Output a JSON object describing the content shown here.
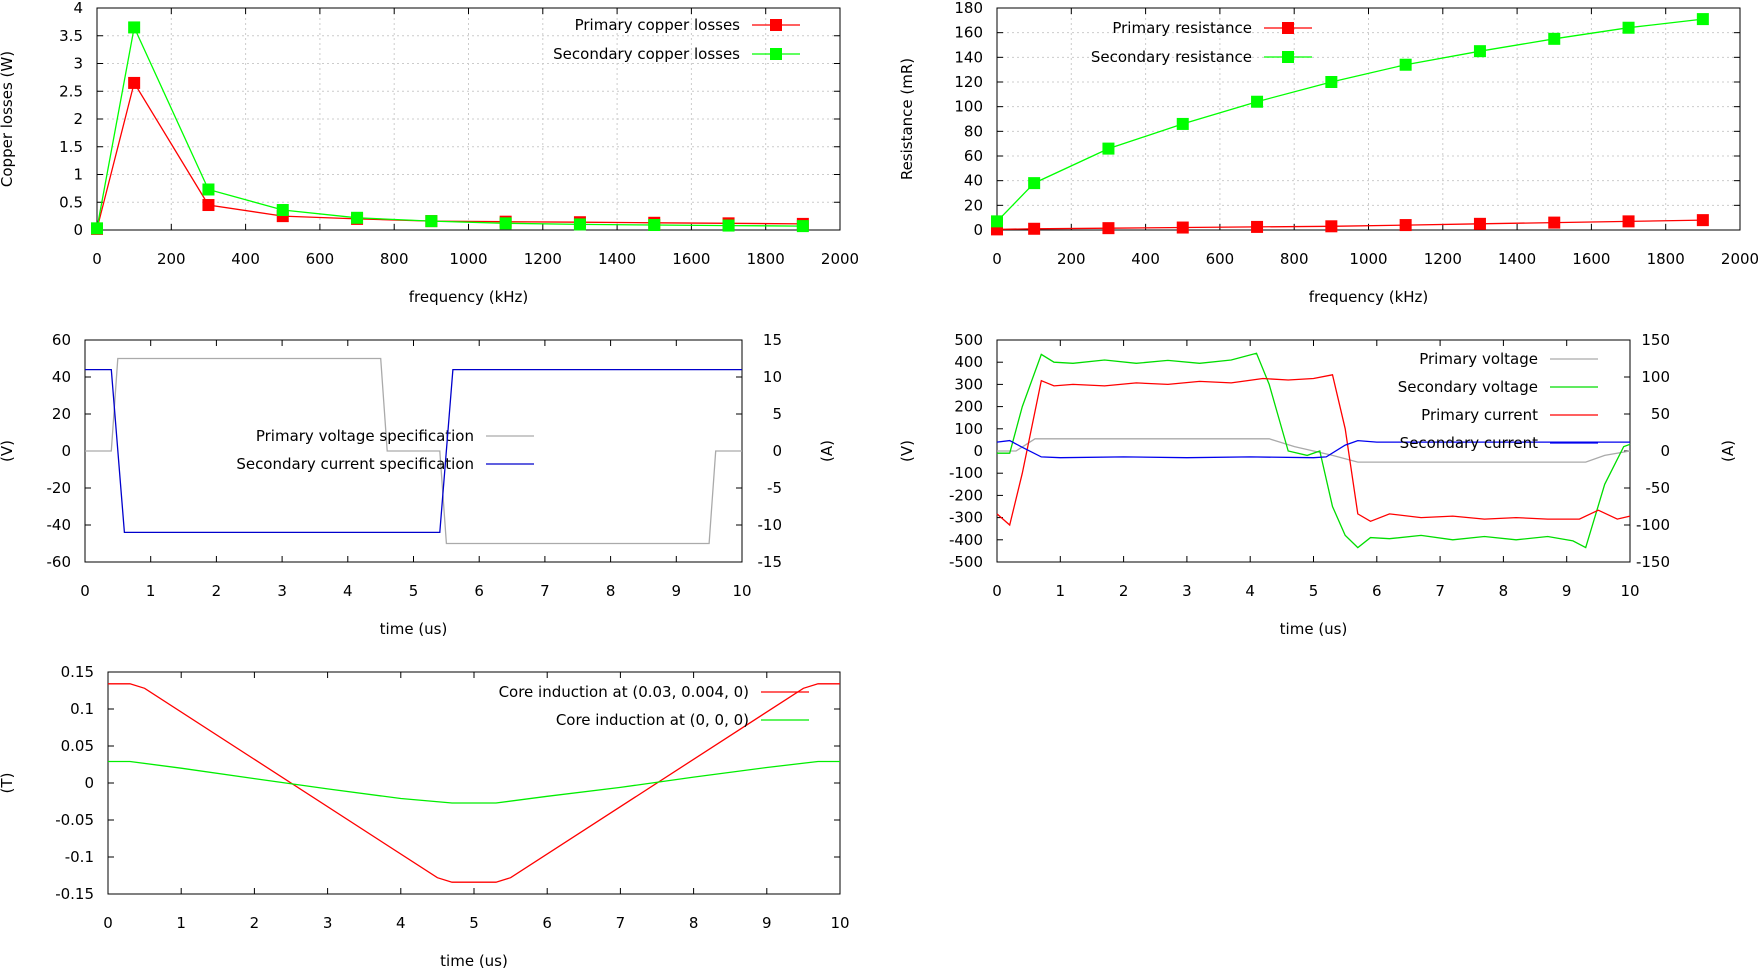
{
  "chart_data": [
    {
      "type": "line",
      "xlabel": "frequency (kHz)",
      "ylabel": "Copper losses (W)",
      "xlim": [
        0,
        2000
      ],
      "ylim": [
        0,
        4
      ],
      "xticks": [
        "0",
        "200",
        "400",
        "600",
        "800",
        "1000",
        "1200",
        "1400",
        "1600",
        "1800",
        "2000"
      ],
      "yticks": [
        "0",
        "0.5",
        "1",
        "1.5",
        "2",
        "2.5",
        "3",
        "3.5",
        "4"
      ],
      "grid": true,
      "legend": "top-right",
      "x": [
        0,
        100,
        300,
        500,
        700,
        900,
        1100,
        1300,
        1500,
        1700,
        1900
      ],
      "series": [
        {
          "name": "Primary copper losses",
          "color": "#ff0000",
          "marker": "square",
          "values": [
            0.02,
            2.65,
            0.45,
            0.25,
            0.2,
            0.16,
            0.15,
            0.14,
            0.13,
            0.12,
            0.11
          ]
        },
        {
          "name": "Secondary copper losses",
          "color": "#00ff00",
          "marker": "square",
          "values": [
            0.03,
            3.65,
            0.73,
            0.36,
            0.22,
            0.16,
            0.12,
            0.1,
            0.09,
            0.08,
            0.07
          ]
        }
      ]
    },
    {
      "type": "line",
      "xlabel": "frequency (kHz)",
      "ylabel": "Resistance (mR)",
      "xlim": [
        0,
        2000
      ],
      "ylim": [
        0,
        180
      ],
      "xticks": [
        "0",
        "200",
        "400",
        "600",
        "800",
        "1000",
        "1200",
        "1400",
        "1600",
        "1800",
        "2000"
      ],
      "yticks": [
        "0",
        "20",
        "40",
        "60",
        "80",
        "100",
        "120",
        "140",
        "160",
        "180"
      ],
      "grid": true,
      "legend": "top-left",
      "x": [
        0,
        100,
        300,
        500,
        700,
        900,
        1100,
        1300,
        1500,
        1700,
        1900
      ],
      "series": [
        {
          "name": "Primary resistance",
          "color": "#ff0000",
          "marker": "square",
          "values": [
            0.5,
            1.0,
            1.5,
            2.0,
            2.5,
            3.0,
            4.0,
            5.0,
            6.0,
            7.0,
            8.0
          ]
        },
        {
          "name": "Secondary resistance",
          "color": "#00ff00",
          "marker": "square",
          "values": [
            7,
            38,
            66,
            86,
            104,
            120,
            134,
            145,
            155,
            164,
            171
          ]
        }
      ]
    },
    {
      "type": "line",
      "xlabel": "time (us)",
      "ylabel": "(V)",
      "y2label": "(A)",
      "xlim": [
        0,
        10
      ],
      "ylim": [
        -60,
        60
      ],
      "y2lim": [
        -15,
        15
      ],
      "xticks": [
        "0",
        "1",
        "2",
        "3",
        "4",
        "5",
        "6",
        "7",
        "8",
        "9",
        "10"
      ],
      "yticks": [
        "-60",
        "-40",
        "-20",
        "0",
        "20",
        "40",
        "60"
      ],
      "y2ticks": [
        "-15",
        "-10",
        "-5",
        "0",
        "5",
        "10",
        "15"
      ],
      "grid": false,
      "legend": "center",
      "series": [
        {
          "name": "Primary voltage specification",
          "color": "#aaaaaa",
          "axis": "y1",
          "x": [
            0,
            0.4,
            0.5,
            4.5,
            4.6,
            5.4,
            5.5,
            9.5,
            9.6,
            10
          ],
          "values": [
            0,
            0,
            50,
            50,
            0,
            0,
            -50,
            -50,
            0,
            0
          ]
        },
        {
          "name": "Secondary current specification",
          "color": "#0000cc",
          "axis": "y2",
          "x": [
            0,
            0.4,
            0.6,
            5.4,
            5.6,
            10
          ],
          "values": [
            11,
            11,
            -11,
            -11,
            11,
            11
          ]
        }
      ]
    },
    {
      "type": "line",
      "xlabel": "time (us)",
      "ylabel": "(V)",
      "y2label": "(A)",
      "xlim": [
        0,
        10
      ],
      "ylim": [
        -500,
        500
      ],
      "y2lim": [
        -150,
        150
      ],
      "xticks": [
        "0",
        "1",
        "2",
        "3",
        "4",
        "5",
        "6",
        "7",
        "8",
        "9",
        "10"
      ],
      "yticks": [
        "-500",
        "-400",
        "-300",
        "-200",
        "-100",
        "0",
        "100",
        "200",
        "300",
        "400",
        "500"
      ],
      "y2ticks": [
        "-150",
        "-100",
        "-50",
        "0",
        "50",
        "100",
        "150"
      ],
      "grid": false,
      "legend": "top-right",
      "series": [
        {
          "name": "Primary voltage",
          "color": "#aaaaaa",
          "axis": "y1",
          "x": [
            0,
            0.3,
            0.6,
            4.3,
            4.7,
            5.3,
            5.7,
            9.3,
            9.6,
            10
          ],
          "values": [
            0,
            0,
            55,
            55,
            20,
            -20,
            -50,
            -50,
            -20,
            0
          ]
        },
        {
          "name": "Secondary voltage",
          "color": "#00dd00",
          "axis": "y1",
          "x": [
            0,
            0.2,
            0.4,
            0.7,
            0.9,
            1.2,
            1.7,
            2.2,
            2.7,
            3.2,
            3.7,
            4.1,
            4.3,
            4.6,
            4.9,
            5.1,
            5.3,
            5.5,
            5.7,
            5.9,
            6.2,
            6.7,
            7.2,
            7.7,
            8.2,
            8.7,
            9.1,
            9.3,
            9.6,
            9.9,
            10
          ],
          "values": [
            -10,
            -10,
            200,
            435,
            400,
            395,
            410,
            395,
            408,
            395,
            410,
            440,
            300,
            0,
            -20,
            0,
            -250,
            -380,
            -435,
            -390,
            -395,
            -380,
            -400,
            -385,
            -400,
            -385,
            -405,
            -435,
            -150,
            20,
            30
          ]
        },
        {
          "name": "Primary current",
          "color": "#ff0000",
          "axis": "y2",
          "x": [
            0,
            0.2,
            0.4,
            0.7,
            0.9,
            1.2,
            1.7,
            2.2,
            2.7,
            3.2,
            3.7,
            4.2,
            4.6,
            5.0,
            5.3,
            5.5,
            5.7,
            5.9,
            6.2,
            6.7,
            7.2,
            7.7,
            8.2,
            8.7,
            9.2,
            9.5,
            9.8,
            10
          ],
          "values": [
            -85,
            -100,
            -30,
            95,
            88,
            90,
            88,
            92,
            90,
            94,
            92,
            98,
            96,
            98,
            103,
            30,
            -85,
            -95,
            -85,
            -90,
            -88,
            -92,
            -90,
            -92,
            -92,
            -80,
            -92,
            -88
          ]
        },
        {
          "name": "Secondary current",
          "color": "#0000ee",
          "axis": "y2",
          "x": [
            0,
            0.2,
            0.4,
            0.7,
            1.0,
            2.0,
            3.0,
            4.0,
            5.0,
            5.2,
            5.5,
            5.7,
            6.0,
            7.0,
            8.0,
            9.0,
            9.5,
            10
          ],
          "values": [
            12,
            14,
            5,
            -8,
            -9,
            -8,
            -9,
            -8,
            -9,
            -8,
            8,
            14,
            12,
            12,
            12,
            12,
            12,
            12
          ]
        }
      ]
    },
    {
      "type": "line",
      "xlabel": "time (us)",
      "ylabel": "(T)",
      "xlim": [
        0,
        10
      ],
      "ylim": [
        -0.15,
        0.15
      ],
      "xticks": [
        "0",
        "1",
        "2",
        "3",
        "4",
        "5",
        "6",
        "7",
        "8",
        "9",
        "10"
      ],
      "yticks": [
        "-0.15",
        "-0.1",
        "-0.05",
        "0",
        "0.05",
        "0.1",
        "0.15"
      ],
      "grid": false,
      "legend": "top-right",
      "series": [
        {
          "name": "Core induction at (0.03, 0.004, 0)",
          "color": "#ff0000",
          "x": [
            0,
            0.3,
            0.5,
            4.5,
            4.7,
            5.3,
            5.5,
            9.5,
            9.7,
            10
          ],
          "values": [
            0.134,
            0.134,
            0.128,
            -0.128,
            -0.134,
            -0.134,
            -0.128,
            0.128,
            0.134,
            0.134
          ]
        },
        {
          "name": "Core induction at (0, 0, 0)",
          "color": "#00ee00",
          "x": [
            0,
            0.3,
            1,
            2,
            3,
            4,
            4.7,
            5.3,
            6,
            7,
            8,
            9,
            9.7,
            10
          ],
          "values": [
            0.029,
            0.029,
            0.02,
            0.006,
            -0.008,
            -0.021,
            -0.027,
            -0.027,
            -0.018,
            -0.006,
            0.008,
            0.021,
            0.029,
            0.029
          ]
        }
      ]
    }
  ]
}
